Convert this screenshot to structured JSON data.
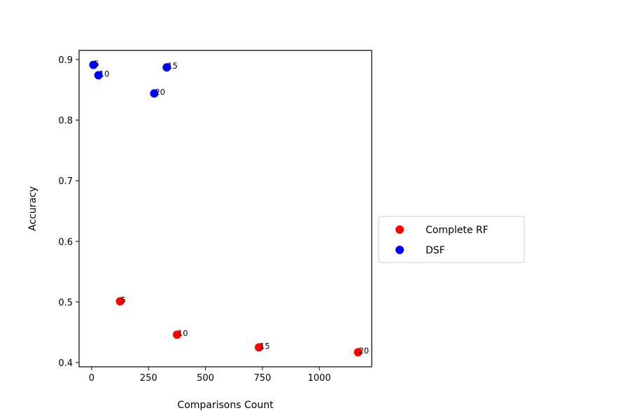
{
  "chart_data": {
    "type": "scatter",
    "title": "",
    "xlabel": "Comparisons Count",
    "ylabel": "Accuracy",
    "xlim": [
      -55,
      1230
    ],
    "ylim": [
      0.393,
      0.915
    ],
    "xticks": [
      0,
      250,
      500,
      750,
      1000
    ],
    "yticks": [
      0.4,
      0.5,
      0.6,
      0.7,
      0.8,
      0.9
    ],
    "grid": false,
    "legend": {
      "placement": "center-left-outside"
    },
    "series": [
      {
        "name": "Complete RF",
        "color": "#ff0000",
        "points": [
          {
            "x": 125,
            "y": 0.501,
            "label": "5"
          },
          {
            "x": 375,
            "y": 0.446,
            "label": "10"
          },
          {
            "x": 735,
            "y": 0.425,
            "label": "15"
          },
          {
            "x": 1170,
            "y": 0.417,
            "label": "20"
          }
        ]
      },
      {
        "name": "DSF",
        "color": "#0000ff",
        "points": [
          {
            "x": 8,
            "y": 0.891,
            "label": "5"
          },
          {
            "x": 30,
            "y": 0.874,
            "label": "10"
          },
          {
            "x": 330,
            "y": 0.887,
            "label": "15"
          },
          {
            "x": 275,
            "y": 0.844,
            "label": "20"
          }
        ]
      }
    ]
  }
}
